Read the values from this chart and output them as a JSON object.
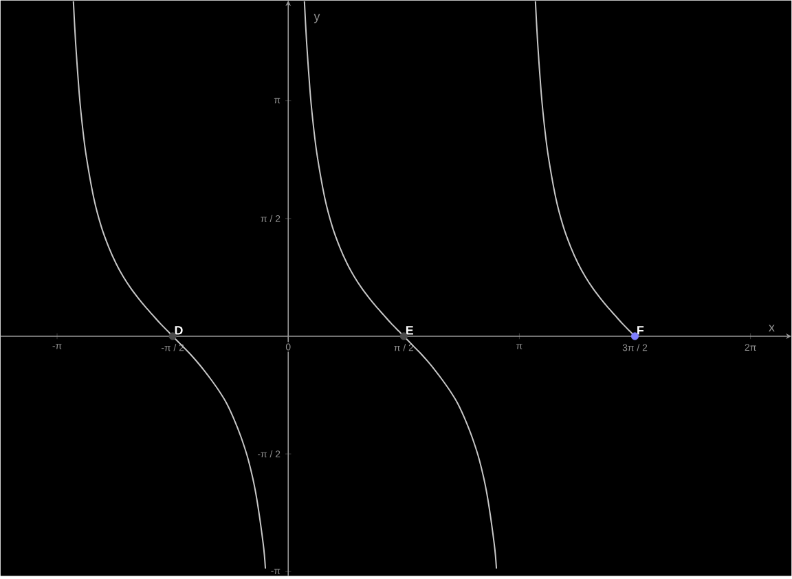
{
  "chart_data": {
    "type": "line",
    "xlabel": "x",
    "ylabel": "y",
    "xlim": [
      -3.91,
      6.84
    ],
    "ylim": [
      -3.2,
      4.48
    ],
    "grid": false,
    "xticks": [
      {
        "value": -3.1416,
        "label": "-π"
      },
      {
        "value": -1.5708,
        "label": "-π / 2"
      },
      {
        "value": 0,
        "label": "0"
      },
      {
        "value": 1.5708,
        "label": "π / 2"
      },
      {
        "value": 3.1416,
        "label": "π"
      },
      {
        "value": 4.7124,
        "label": "3π / 2"
      },
      {
        "value": 6.2832,
        "label": "2π"
      }
    ],
    "yticks": [
      {
        "value": -3.1416,
        "label": "-π"
      },
      {
        "value": -1.5708,
        "label": "-π / 2"
      },
      {
        "value": 1.5708,
        "label": "π / 2"
      },
      {
        "value": 3.1416,
        "label": "π"
      }
    ],
    "series": [
      {
        "color": "#c8c8c8",
        "x": [
          -2.92,
          -2.89,
          -2.84,
          -2.79,
          -2.74,
          -2.64,
          -2.54,
          -2.44,
          -2.34,
          -2.24,
          -2.14,
          -2.04,
          -1.94,
          -1.84,
          -1.74,
          -1.64,
          -1.571,
          -1.44,
          -1.34,
          -1.24,
          -1.14,
          -1.04,
          -0.94,
          -0.84,
          -0.74,
          -0.64,
          -0.54,
          -0.44,
          -0.34,
          -0.31
        ],
        "values": [
          4.47,
          3.92,
          3.23,
          2.74,
          2.37,
          1.83,
          1.46,
          1.19,
          0.97,
          0.79,
          0.64,
          0.51,
          0.39,
          0.28,
          0.17,
          0.07,
          0,
          -0.13,
          -0.23,
          -0.34,
          -0.46,
          -0.59,
          -0.73,
          -0.89,
          -1.1,
          -1.35,
          -1.66,
          -2.1,
          -2.77,
          -3.1
        ]
      },
      {
        "color": "#c8c8c8",
        "x": [
          0.22,
          0.25,
          0.3,
          0.35,
          0.4,
          0.5,
          0.6,
          0.7,
          0.8,
          0.9,
          1.0,
          1.1,
          1.2,
          1.3,
          1.4,
          1.5,
          1.571,
          1.7,
          1.8,
          1.9,
          2.0,
          2.1,
          2.2,
          2.3,
          2.4,
          2.5,
          2.6,
          2.7,
          2.8,
          2.83
        ],
        "values": [
          4.47,
          3.92,
          3.23,
          2.74,
          2.37,
          1.83,
          1.46,
          1.19,
          0.97,
          0.79,
          0.64,
          0.51,
          0.39,
          0.28,
          0.17,
          0.07,
          0,
          -0.13,
          -0.23,
          -0.34,
          -0.46,
          -0.59,
          -0.73,
          -0.89,
          -1.1,
          -1.35,
          -1.66,
          -2.1,
          -2.77,
          -3.1
        ]
      },
      {
        "color": "#c8c8c8",
        "x": [
          3.36,
          3.39,
          3.44,
          3.49,
          3.54,
          3.64,
          3.74,
          3.84,
          3.94,
          4.04,
          4.14,
          4.24,
          4.34,
          4.44,
          4.54,
          4.64,
          4.712
        ],
        "values": [
          4.47,
          3.92,
          3.23,
          2.74,
          2.37,
          1.83,
          1.46,
          1.19,
          0.97,
          0.79,
          0.64,
          0.51,
          0.39,
          0.28,
          0.17,
          0.07,
          0
        ]
      },
      {
        "type": "scatter",
        "marker": "circle",
        "x": [
          -1.571,
          1.571,
          4.712
        ],
        "values": [
          0,
          0,
          0
        ],
        "colors": [
          "#4a4a4a",
          "#4a4a4a",
          "#7f7fff"
        ]
      }
    ],
    "annotations": [
      {
        "text": "D",
        "x": -1.571,
        "y": 0
      },
      {
        "text": "E",
        "x": 1.571,
        "y": 0
      },
      {
        "text": "F",
        "x": 4.712,
        "y": 0
      }
    ]
  }
}
